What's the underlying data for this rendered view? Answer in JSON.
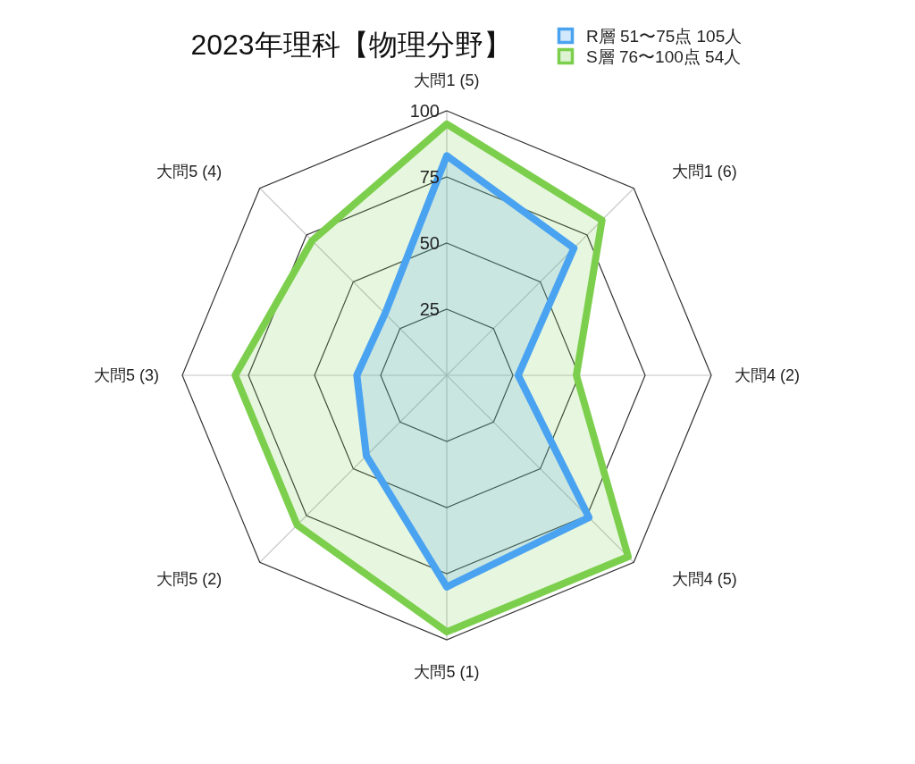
{
  "chart_data": {
    "type": "radar",
    "title": "2023年理科【物理分野】",
    "categories": [
      "大問1 (5)",
      "大問1 (6)",
      "大問4 (2)",
      "大問4 (5)",
      "大問5 (1)",
      "大問5 (2)",
      "大問5 (3)",
      "大問5 (4)"
    ],
    "series": [
      {
        "name": "R層 51〜75点 105人",
        "color": "#4aa3f0",
        "values": [
          83,
          68,
          27,
          76,
          80,
          43,
          34,
          33
        ]
      },
      {
        "name": "S層 76〜100点 54人",
        "color": "#7ccf4c",
        "values": [
          95,
          83,
          49,
          97,
          97,
          80,
          80,
          72
        ]
      }
    ],
    "ylim": [
      0,
      100
    ],
    "yticks": [
      25,
      50,
      75,
      100
    ],
    "grid": true,
    "legend": "top right"
  }
}
